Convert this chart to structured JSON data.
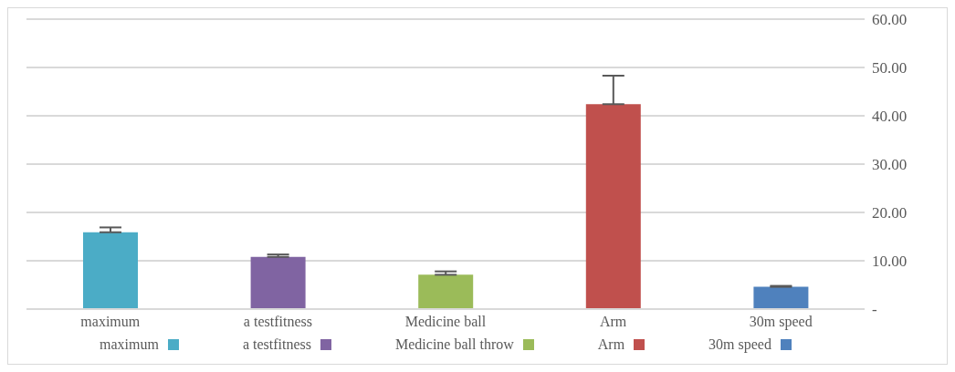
{
  "chart_data": {
    "type": "bar",
    "categories": [
      "maximum",
      "a testfitness",
      "Medicine ball",
      "Arm",
      "30m speed"
    ],
    "stacked": true,
    "series": [
      {
        "name": "maximum",
        "color": "#4bacc6",
        "values": [
          15.9,
          null,
          null,
          null,
          null
        ],
        "errors": [
          [
            15.9,
            16.9
          ],
          null,
          null,
          null,
          null
        ]
      },
      {
        "name": "a testfitness",
        "color": "#8064a2",
        "values": [
          null,
          10.8,
          null,
          null,
          null
        ],
        "errors": [
          null,
          [
            10.8,
            11.3
          ],
          null,
          null,
          null
        ]
      },
      {
        "name": "Medicine ball throw",
        "color": "#9bbb59",
        "values": [
          null,
          null,
          7.1,
          null,
          null
        ],
        "errors": [
          null,
          null,
          [
            7.1,
            7.8
          ],
          null,
          null
        ]
      },
      {
        "name": "Arm",
        "color": "#c0504d",
        "values": [
          null,
          null,
          null,
          42.4,
          null
        ],
        "errors": [
          null,
          null,
          null,
          [
            42.4,
            48.3
          ],
          null
        ]
      },
      {
        "name": "30m speed",
        "color": "#4f81bd",
        "values": [
          null,
          null,
          null,
          null,
          4.6
        ],
        "errors": [
          null,
          null,
          null,
          null,
          [
            4.6,
            4.8
          ]
        ]
      }
    ],
    "ylim": [
      0,
      60
    ],
    "yticks": [
      {
        "value": 0,
        "label": "-"
      },
      {
        "value": 10,
        "label": "10.00"
      },
      {
        "value": 20,
        "label": "20.00"
      },
      {
        "value": 30,
        "label": "30.00"
      },
      {
        "value": 40,
        "label": "40.00"
      },
      {
        "value": 50,
        "label": "50.00"
      },
      {
        "value": 60,
        "label": "60.00"
      }
    ],
    "grid": "y",
    "legend": "bottom"
  }
}
